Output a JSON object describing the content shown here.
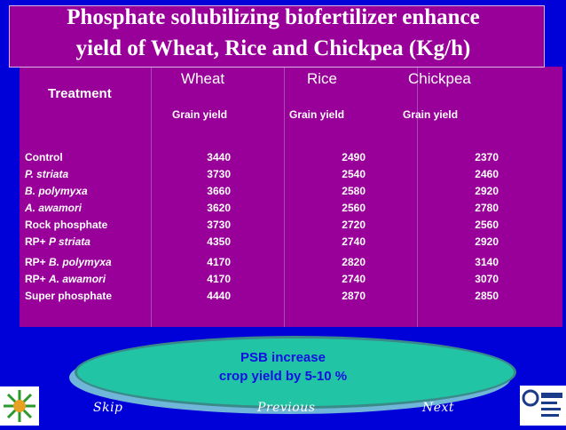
{
  "title_line1": "Phosphate solubilizing  biofertilizer enhance",
  "title_line2": "yield of Wheat, Rice and Chickpea (Kg/h)",
  "treatment_header": "Treatment",
  "crops": [
    "Wheat",
    "Rice",
    "Chickpea"
  ],
  "subheader": "Grain yield",
  "rows": [
    {
      "label": "Control",
      "italic_prefix": "",
      "italic": "",
      "wheat": "3440",
      "rice": "2490",
      "chickpea": "2370"
    },
    {
      "label": "",
      "italic_prefix": "",
      "italic": " P. striata",
      "wheat": "3730",
      "rice": "2540",
      "chickpea": "2460"
    },
    {
      "label": "",
      "italic_prefix": "",
      "italic": " B. polymyxa",
      "wheat": "3660",
      "rice": "2580",
      "chickpea": "2920"
    },
    {
      "label": "",
      "italic_prefix": "",
      "italic": "A. awamori",
      "wheat": "3620",
      "rice": "2560",
      "chickpea": "2780"
    },
    {
      "label": "Rock phosphate",
      "italic_prefix": "",
      "italic": "",
      "wheat": "3730",
      "rice": "2720",
      "chickpea": "2560"
    },
    {
      "label": "",
      "italic_prefix": "RP+ ",
      "italic": "P striata",
      "wheat": "4350",
      "rice": "2740",
      "chickpea": "2920"
    },
    {
      "label": "",
      "italic_prefix": "RP+ ",
      "italic": "B. polymyxa",
      "wheat": "4170",
      "rice": "2820",
      "chickpea": "3140"
    },
    {
      "label": "",
      "italic_prefix": "RP+ ",
      "italic": "A. awamori",
      "wheat": "4170",
      "rice": "2740",
      "chickpea": "3070"
    },
    {
      "label": "Super phosphate",
      "italic_prefix": "",
      "italic": "",
      "wheat": "4440",
      "rice": "2870",
      "chickpea": "2850"
    }
  ],
  "callout_line1": "PSB increase",
  "callout_line2": "crop yield by 5-10 %",
  "nav": {
    "skip": "Skip",
    "previous": "Previous",
    "next": "Next"
  },
  "colors": {
    "background": "#0000d8",
    "panel": "#990099",
    "oval": "#22c4a6",
    "callout_text": "#1010e0"
  }
}
